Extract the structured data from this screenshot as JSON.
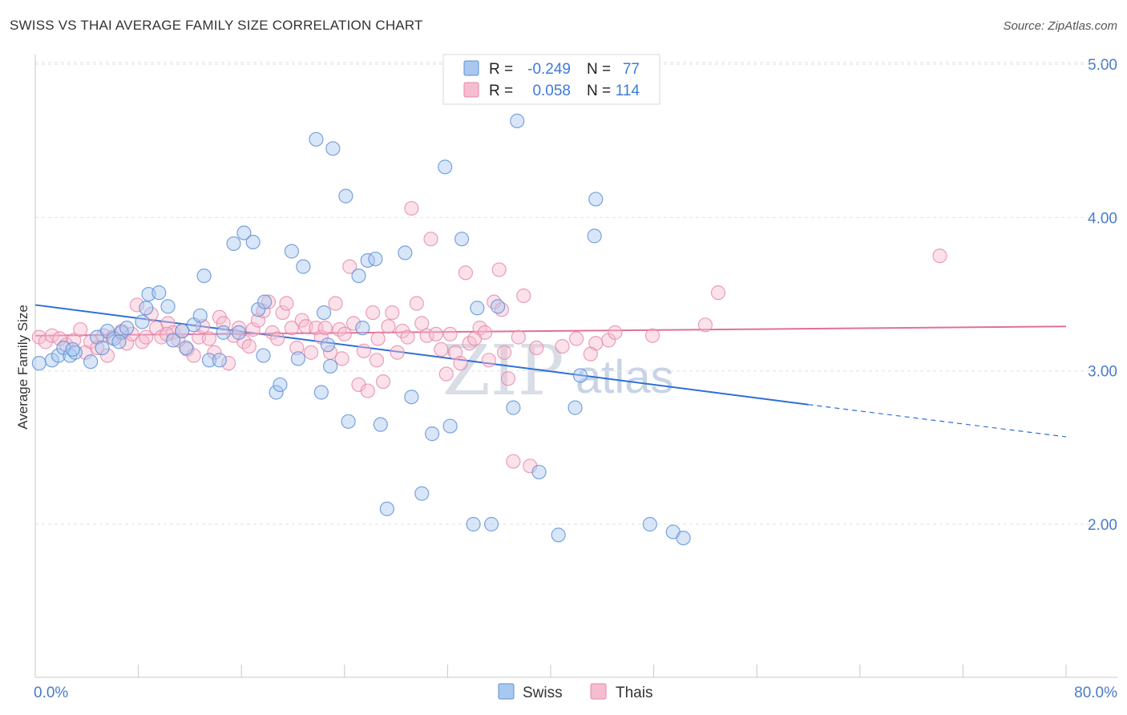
{
  "title": "SWISS VS THAI AVERAGE FAMILY SIZE CORRELATION CHART",
  "source": "Source: ZipAtlas.com",
  "watermark": {
    "part1": "ZIP",
    "part2": "atlas"
  },
  "legend": {
    "r_label": "R =",
    "n_label": "N =",
    "swiss": {
      "r": "-0.249",
      "n": "77"
    },
    "thai": {
      "r": "0.058",
      "n": "114"
    }
  },
  "colors": {
    "swiss_fill": "#a9c8f0",
    "swiss_stroke": "#5a8fd6",
    "swiss_line": "#2e6fd6",
    "thai_fill": "#f6bdd0",
    "thai_stroke": "#e688a8",
    "thai_line": "#e0709a",
    "tick_text": "#4a7cc9"
  },
  "chart_data": {
    "type": "scatter",
    "title": "SWISS VS THAI AVERAGE FAMILY SIZE CORRELATION CHART",
    "xlabel": "",
    "ylabel": "Average Family Size",
    "xlim": [
      0,
      80
    ],
    "ylim": [
      1.0,
      5.1
    ],
    "x_tick_labels": [
      "0.0%",
      "80.0%"
    ],
    "y_ticks": [
      {
        "value": 2.0,
        "label": "2.00"
      },
      {
        "value": 3.0,
        "label": "3.00"
      },
      {
        "value": 4.0,
        "label": "4.00"
      },
      {
        "value": 5.0,
        "label": "5.00"
      }
    ],
    "series": [
      {
        "name": "Swiss",
        "trend": {
          "x1": 0,
          "y1": 3.43,
          "x2": 60,
          "y2": 2.78,
          "dash_x2": 80,
          "dash_y2": 2.57
        },
        "points": [
          [
            0.3,
            3.05
          ],
          [
            1.3,
            3.07
          ],
          [
            1.8,
            3.1
          ],
          [
            2.2,
            3.15
          ],
          [
            2.7,
            3.1
          ],
          [
            3.1,
            3.12
          ],
          [
            4.3,
            3.06
          ],
          [
            4.8,
            3.22
          ],
          [
            5.2,
            3.15
          ],
          [
            5.6,
            3.26
          ],
          [
            6.1,
            3.21
          ],
          [
            6.7,
            3.25
          ],
          [
            7.1,
            3.28
          ],
          [
            8.3,
            3.32
          ],
          [
            8.6,
            3.41
          ],
          [
            8.8,
            3.5
          ],
          [
            9.6,
            3.51
          ],
          [
            10.3,
            3.42
          ],
          [
            10.7,
            3.2
          ],
          [
            11.4,
            3.26
          ],
          [
            11.7,
            3.15
          ],
          [
            12.3,
            3.3
          ],
          [
            12.8,
            3.36
          ],
          [
            13.1,
            3.62
          ],
          [
            13.5,
            3.07
          ],
          [
            14.3,
            3.07
          ],
          [
            14.6,
            3.25
          ],
          [
            15.4,
            3.83
          ],
          [
            15.8,
            3.25
          ],
          [
            16.2,
            3.9
          ],
          [
            16.9,
            3.84
          ],
          [
            17.3,
            3.4
          ],
          [
            17.8,
            3.45
          ],
          [
            17.7,
            3.1
          ],
          [
            18.7,
            2.86
          ],
          [
            19.0,
            2.91
          ],
          [
            19.9,
            3.78
          ],
          [
            20.4,
            3.08
          ],
          [
            20.8,
            3.68
          ],
          [
            21.8,
            4.51
          ],
          [
            22.2,
            2.86
          ],
          [
            22.4,
            3.38
          ],
          [
            22.7,
            3.17
          ],
          [
            22.9,
            3.03
          ],
          [
            23.1,
            4.45
          ],
          [
            24.1,
            4.14
          ],
          [
            24.3,
            2.67
          ],
          [
            25.1,
            3.62
          ],
          [
            25.4,
            3.28
          ],
          [
            25.8,
            3.72
          ],
          [
            26.4,
            3.73
          ],
          [
            26.8,
            2.65
          ],
          [
            27.3,
            2.1
          ],
          [
            28.7,
            3.77
          ],
          [
            29.2,
            2.83
          ],
          [
            30.0,
            2.2
          ],
          [
            30.8,
            2.59
          ],
          [
            31.8,
            4.33
          ],
          [
            32.2,
            2.64
          ],
          [
            33.1,
            3.86
          ],
          [
            34.0,
            2.0
          ],
          [
            34.3,
            3.41
          ],
          [
            35.4,
            2.0
          ],
          [
            35.9,
            3.42
          ],
          [
            37.1,
            2.76
          ],
          [
            37.4,
            4.63
          ],
          [
            39.1,
            2.34
          ],
          [
            40.6,
            1.93
          ],
          [
            41.9,
            2.76
          ],
          [
            42.3,
            2.97
          ],
          [
            43.4,
            3.88
          ],
          [
            47.7,
            2.0
          ],
          [
            49.5,
            1.95
          ],
          [
            50.3,
            1.91
          ],
          [
            43.5,
            4.12
          ],
          [
            2.9,
            3.14
          ],
          [
            6.5,
            3.19
          ]
        ]
      },
      {
        "name": "Thais",
        "trend": {
          "x1": 0,
          "y1": 3.23,
          "x2": 80,
          "y2": 3.29
        },
        "points": [
          [
            0.3,
            3.22
          ],
          [
            0.8,
            3.19
          ],
          [
            1.3,
            3.23
          ],
          [
            1.9,
            3.21
          ],
          [
            2.4,
            3.17
          ],
          [
            3.0,
            3.2
          ],
          [
            3.5,
            3.27
          ],
          [
            3.9,
            3.12
          ],
          [
            4.3,
            3.19
          ],
          [
            4.8,
            3.15
          ],
          [
            5.3,
            3.23
          ],
          [
            5.6,
            3.1
          ],
          [
            6.0,
            3.22
          ],
          [
            6.7,
            3.26
          ],
          [
            7.1,
            3.18
          ],
          [
            7.5,
            3.24
          ],
          [
            7.9,
            3.43
          ],
          [
            8.3,
            3.19
          ],
          [
            8.6,
            3.22
          ],
          [
            9.0,
            3.37
          ],
          [
            9.4,
            3.28
          ],
          [
            9.8,
            3.22
          ],
          [
            10.3,
            3.31
          ],
          [
            10.7,
            3.25
          ],
          [
            11.1,
            3.2
          ],
          [
            11.4,
            3.26
          ],
          [
            11.8,
            3.14
          ],
          [
            12.3,
            3.1
          ],
          [
            12.7,
            3.22
          ],
          [
            13.0,
            3.29
          ],
          [
            13.5,
            3.21
          ],
          [
            13.9,
            3.12
          ],
          [
            14.3,
            3.35
          ],
          [
            14.6,
            3.31
          ],
          [
            15.0,
            3.05
          ],
          [
            15.4,
            3.23
          ],
          [
            15.8,
            3.28
          ],
          [
            16.2,
            3.19
          ],
          [
            16.6,
            3.16
          ],
          [
            16.9,
            3.27
          ],
          [
            17.3,
            3.33
          ],
          [
            17.7,
            3.39
          ],
          [
            18.1,
            3.45
          ],
          [
            18.4,
            3.25
          ],
          [
            18.8,
            3.21
          ],
          [
            19.2,
            3.38
          ],
          [
            19.5,
            3.44
          ],
          [
            19.9,
            3.28
          ],
          [
            20.3,
            3.15
          ],
          [
            20.7,
            3.33
          ],
          [
            21.0,
            3.29
          ],
          [
            21.4,
            3.12
          ],
          [
            21.8,
            3.28
          ],
          [
            22.2,
            3.22
          ],
          [
            22.5,
            3.28
          ],
          [
            22.9,
            3.12
          ],
          [
            23.3,
            3.44
          ],
          [
            23.6,
            3.27
          ],
          [
            24.0,
            3.24
          ],
          [
            24.4,
            3.68
          ],
          [
            24.7,
            3.31
          ],
          [
            25.1,
            2.91
          ],
          [
            25.5,
            3.13
          ],
          [
            25.8,
            2.87
          ],
          [
            26.2,
            3.38
          ],
          [
            26.6,
            3.21
          ],
          [
            27.0,
            2.93
          ],
          [
            27.4,
            3.29
          ],
          [
            27.7,
            3.38
          ],
          [
            28.1,
            3.12
          ],
          [
            28.5,
            3.26
          ],
          [
            28.9,
            3.22
          ],
          [
            29.2,
            4.06
          ],
          [
            29.6,
            3.44
          ],
          [
            30.0,
            3.31
          ],
          [
            30.4,
            3.23
          ],
          [
            30.7,
            3.86
          ],
          [
            31.1,
            3.24
          ],
          [
            31.5,
            3.14
          ],
          [
            31.9,
            2.98
          ],
          [
            32.2,
            3.24
          ],
          [
            32.6,
            3.12
          ],
          [
            33.0,
            3.05
          ],
          [
            33.4,
            3.64
          ],
          [
            33.7,
            3.18
          ],
          [
            34.1,
            3.21
          ],
          [
            34.5,
            3.28
          ],
          [
            34.9,
            3.25
          ],
          [
            35.2,
            3.07
          ],
          [
            35.6,
            3.45
          ],
          [
            36.0,
            3.66
          ],
          [
            36.4,
            3.12
          ],
          [
            36.7,
            2.95
          ],
          [
            37.1,
            2.41
          ],
          [
            37.5,
            3.22
          ],
          [
            37.9,
            3.49
          ],
          [
            38.4,
            2.38
          ],
          [
            38.9,
            3.15
          ],
          [
            42.0,
            3.21
          ],
          [
            43.5,
            3.18
          ],
          [
            44.5,
            3.2
          ],
          [
            45.0,
            3.25
          ],
          [
            47.9,
            3.23
          ],
          [
            52.0,
            3.3
          ],
          [
            53.0,
            3.51
          ],
          [
            70.2,
            3.75
          ],
          [
            43.1,
            3.11
          ],
          [
            40.9,
            3.16
          ],
          [
            10.2,
            3.24
          ],
          [
            26.5,
            3.07
          ],
          [
            36.2,
            3.4
          ],
          [
            23.8,
            3.08
          ]
        ]
      }
    ]
  },
  "bottom_legend": {
    "swiss": "Swiss",
    "thais": "Thais"
  }
}
